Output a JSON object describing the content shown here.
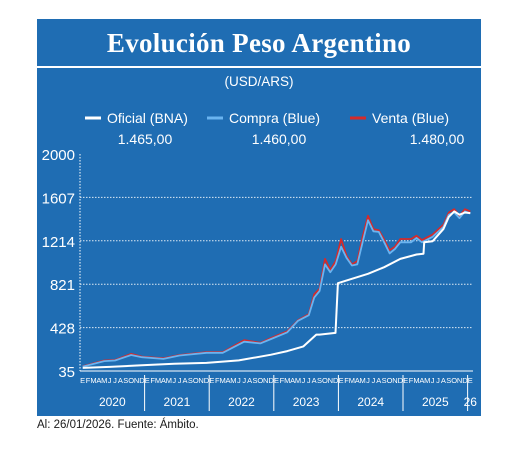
{
  "header": {
    "title": "Evolución Peso Argentino"
  },
  "footer": {
    "note": "Al: 26/01/2026. Fuente: Ámbito."
  },
  "colors": {
    "background": "#1f6db3",
    "oficial": "#ffffff",
    "compra": "#6ab4f0",
    "venta": "#d62a2a"
  },
  "chart_data": {
    "type": "line",
    "subtitle": "(USD/ARS)",
    "ylim": [
      35,
      2000
    ],
    "y_ticks": [
      "2000",
      "1607",
      "1214",
      "821",
      "428",
      "35"
    ],
    "grid": true,
    "legend_position": "top",
    "x_month_letters": [
      "E",
      "F",
      "M",
      "A",
      "M",
      "J",
      "J",
      "A",
      "S",
      "O",
      "N",
      "D"
    ],
    "x_start": "2020-01",
    "x_end": "2026-01",
    "years": [
      "2020",
      "2021",
      "2022",
      "2023",
      "2024",
      "2025",
      "26"
    ],
    "series": [
      {
        "name": "Oficial (BNA)",
        "color": "#ffffff",
        "last_value": "1.465,00",
        "points": [
          [
            "2020-01",
            63
          ],
          [
            "2020-06",
            72
          ],
          [
            "2020-12",
            87
          ],
          [
            "2021-06",
            100
          ],
          [
            "2021-12",
            108
          ],
          [
            "2022-06",
            131
          ],
          [
            "2022-12",
            183
          ],
          [
            "2023-03",
            215
          ],
          [
            "2023-06",
            258
          ],
          [
            "2023-08-13",
            365
          ],
          [
            "2023-08-14",
            365
          ],
          [
            "2023-09",
            365
          ],
          [
            "2023-11-30",
            380
          ],
          [
            "2023-12-13",
            830
          ],
          [
            "2024-03",
            870
          ],
          [
            "2024-06",
            915
          ],
          [
            "2024-09",
            975
          ],
          [
            "2024-12",
            1050
          ],
          [
            "2025-03",
            1090
          ],
          [
            "2025-04-10",
            1097
          ],
          [
            "2025-04-14",
            1200
          ],
          [
            "2025-06",
            1210
          ],
          [
            "2025-08",
            1320
          ],
          [
            "2025-09",
            1430
          ],
          [
            "2025-10",
            1480
          ],
          [
            "2025-11",
            1450
          ],
          [
            "2025-12",
            1470
          ],
          [
            "2026-01",
            1465
          ]
        ]
      },
      {
        "name": "Compra (Blue)",
        "color": "#6ab4f0",
        "last_value": "1.460,00",
        "points": [
          [
            "2020-01",
            75
          ],
          [
            "2020-05",
            125
          ],
          [
            "2020-07",
            130
          ],
          [
            "2020-10",
            180
          ],
          [
            "2020-12",
            160
          ],
          [
            "2021-04",
            145
          ],
          [
            "2021-07",
            175
          ],
          [
            "2021-12",
            200
          ],
          [
            "2022-03",
            200
          ],
          [
            "2022-07",
            300
          ],
          [
            "2022-10",
            285
          ],
          [
            "2022-12",
            325
          ],
          [
            "2023-03",
            385
          ],
          [
            "2023-05",
            490
          ],
          [
            "2023-07",
            540
          ],
          [
            "2023-08",
            700
          ],
          [
            "2023-09",
            760
          ],
          [
            "2023-10",
            1000
          ],
          [
            "2023-11",
            930
          ],
          [
            "2023-12",
            1000
          ],
          [
            "2024-01",
            1160
          ],
          [
            "2024-02",
            1060
          ],
          [
            "2024-03",
            990
          ],
          [
            "2024-04",
            1000
          ],
          [
            "2024-05",
            1200
          ],
          [
            "2024-06",
            1400
          ],
          [
            "2024-07",
            1300
          ],
          [
            "2024-08",
            1295
          ],
          [
            "2024-09",
            1200
          ],
          [
            "2024-10",
            1100
          ],
          [
            "2024-11",
            1140
          ],
          [
            "2024-12",
            1200
          ],
          [
            "2025-02",
            1200
          ],
          [
            "2025-03",
            1240
          ],
          [
            "2025-04",
            1200
          ],
          [
            "2025-06",
            1250
          ],
          [
            "2025-08",
            1340
          ],
          [
            "2025-09",
            1450
          ],
          [
            "2025-10",
            1470
          ],
          [
            "2025-11",
            1420
          ],
          [
            "2025-12",
            1480
          ],
          [
            "2026-01",
            1460
          ]
        ]
      },
      {
        "name": "Venta (Blue)",
        "color": "#d62a2a",
        "last_value": "1.480,00",
        "points": [
          [
            "2020-01",
            78
          ],
          [
            "2020-05",
            130
          ],
          [
            "2020-07",
            135
          ],
          [
            "2020-10",
            190
          ],
          [
            "2020-12",
            165
          ],
          [
            "2021-04",
            150
          ],
          [
            "2021-07",
            180
          ],
          [
            "2021-12",
            205
          ],
          [
            "2022-03",
            205
          ],
          [
            "2022-07",
            315
          ],
          [
            "2022-10",
            290
          ],
          [
            "2022-12",
            335
          ],
          [
            "2023-03",
            395
          ],
          [
            "2023-05",
            495
          ],
          [
            "2023-07",
            550
          ],
          [
            "2023-08",
            730
          ],
          [
            "2023-09",
            780
          ],
          [
            "2023-10",
            1050
          ],
          [
            "2023-11",
            950
          ],
          [
            "2023-12",
            1030
          ],
          [
            "2024-01",
            1230
          ],
          [
            "2024-02",
            1080
          ],
          [
            "2024-03",
            1000
          ],
          [
            "2024-04",
            1030
          ],
          [
            "2024-05",
            1250
          ],
          [
            "2024-06",
            1440
          ],
          [
            "2024-07",
            1320
          ],
          [
            "2024-08",
            1310
          ],
          [
            "2024-09",
            1225
          ],
          [
            "2024-10",
            1130
          ],
          [
            "2024-11",
            1160
          ],
          [
            "2024-12",
            1230
          ],
          [
            "2025-02",
            1230
          ],
          [
            "2025-03",
            1260
          ],
          [
            "2025-04",
            1220
          ],
          [
            "2025-06",
            1270
          ],
          [
            "2025-08",
            1360
          ],
          [
            "2025-09",
            1470
          ],
          [
            "2025-10",
            1500
          ],
          [
            "2025-11",
            1440
          ],
          [
            "2025-12",
            1500
          ],
          [
            "2026-01",
            1480
          ]
        ]
      }
    ]
  }
}
